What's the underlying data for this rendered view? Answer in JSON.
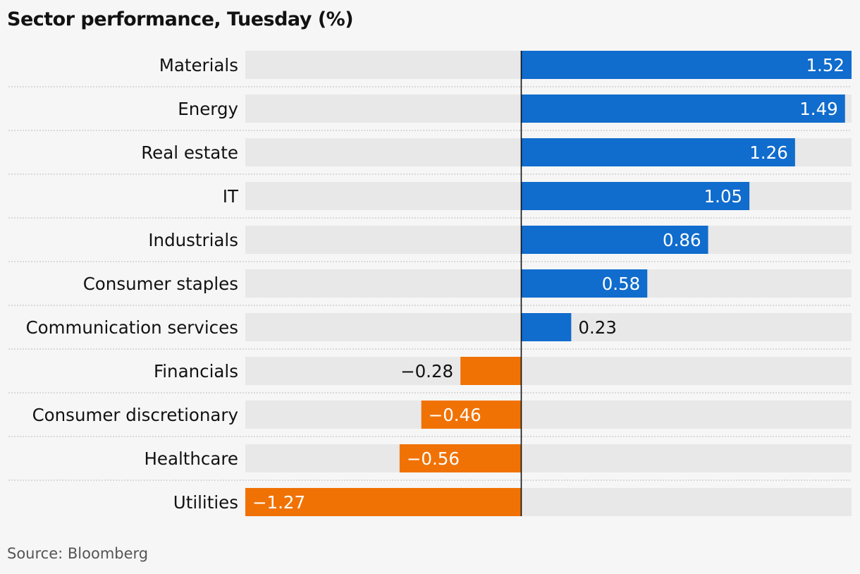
{
  "chart_title": "Sector performance, Tuesday (%)",
  "source": "Source: Bloomberg",
  "colors": {
    "positive": "#106ccd",
    "negative": "#f07204",
    "track": "#e8e8e8",
    "background": "#f6f6f6",
    "zero_line": "#121212",
    "row_separator": "#c8c8c8"
  },
  "chart_data": {
    "type": "bar",
    "orientation": "horizontal",
    "title": "Sector performance, Tuesday (%)",
    "xlim": [
      -1.27,
      1.52
    ],
    "categories": [
      "Materials",
      "Energy",
      "Real estate",
      "IT",
      "Industrials",
      "Consumer staples",
      "Communication services",
      "Financials",
      "Consumer discretionary",
      "Healthcare",
      "Utilities"
    ],
    "values": [
      1.52,
      1.49,
      1.26,
      1.05,
      0.86,
      0.58,
      0.23,
      -0.28,
      -0.46,
      -0.56,
      -1.27
    ],
    "value_labels": [
      "1.52",
      "1.49",
      "1.26",
      "1.05",
      "0.86",
      "0.58",
      "0.23",
      "−0.28",
      "−0.46",
      "−0.56",
      "−1.27"
    ],
    "grid": false,
    "legend": "none"
  }
}
